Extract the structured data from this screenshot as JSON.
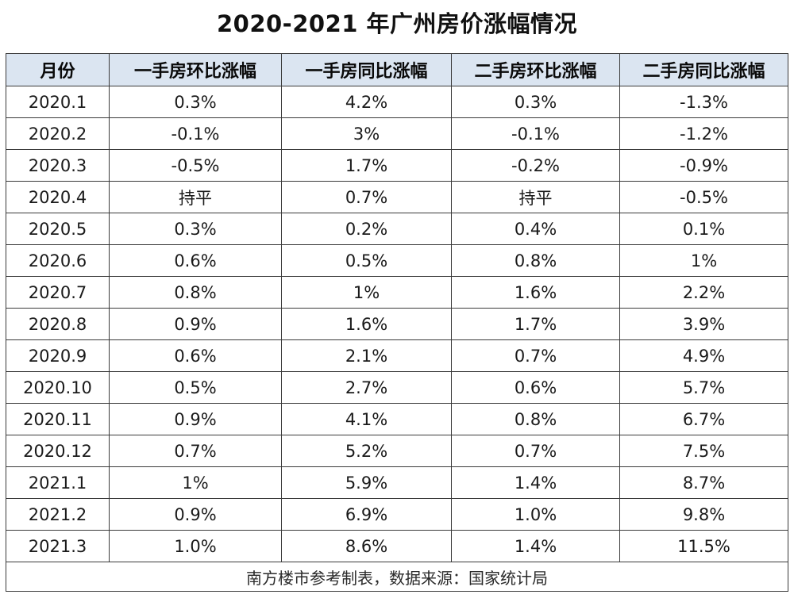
{
  "title": "2020-2021 年广州房价涨幅情况",
  "source_note": "南方楼市参考制表，数据来源：国家统计局",
  "chart_data": {
    "type": "table",
    "title": "2020-2021 年广州房价涨幅情况",
    "columns": [
      "月份",
      "一手房环比涨幅",
      "一手房同比涨幅",
      "二手房环比涨幅",
      "二手房同比涨幅"
    ],
    "rows": [
      [
        "2020.1",
        "0.3%",
        "4.2%",
        "0.3%",
        "-1.3%"
      ],
      [
        "2020.2",
        "-0.1%",
        "3%",
        "-0.1%",
        "-1.2%"
      ],
      [
        "2020.3",
        "-0.5%",
        "1.7%",
        "-0.2%",
        "-0.9%"
      ],
      [
        "2020.4",
        "持平",
        "0.7%",
        "持平",
        "-0.5%"
      ],
      [
        "2020.5",
        "0.3%",
        "0.2%",
        "0.4%",
        "0.1%"
      ],
      [
        "2020.6",
        "0.6%",
        "0.5%",
        "0.8%",
        "1%"
      ],
      [
        "2020.7",
        "0.8%",
        "1%",
        "1.6%",
        "2.2%"
      ],
      [
        "2020.8",
        "0.9%",
        "1.6%",
        "1.7%",
        "3.9%"
      ],
      [
        "2020.9",
        "0.6%",
        "2.1%",
        "0.7%",
        "4.9%"
      ],
      [
        "2020.10",
        "0.5%",
        "2.7%",
        "0.6%",
        "5.7%"
      ],
      [
        "2020.11",
        "0.9%",
        "4.1%",
        "0.8%",
        "6.7%"
      ],
      [
        "2020.12",
        "0.7%",
        "5.2%",
        "0.7%",
        "7.5%"
      ],
      [
        "2021.1",
        "1%",
        "5.9%",
        "1.4%",
        "8.7%"
      ],
      [
        "2021.2",
        "0.9%",
        "6.9%",
        "1.0%",
        "9.8%"
      ],
      [
        "2021.3",
        "1.0%",
        "8.6%",
        "1.4%",
        "11.5%"
      ]
    ],
    "header_background": "#dbe5f1",
    "border_color": "#3a3a3a"
  }
}
